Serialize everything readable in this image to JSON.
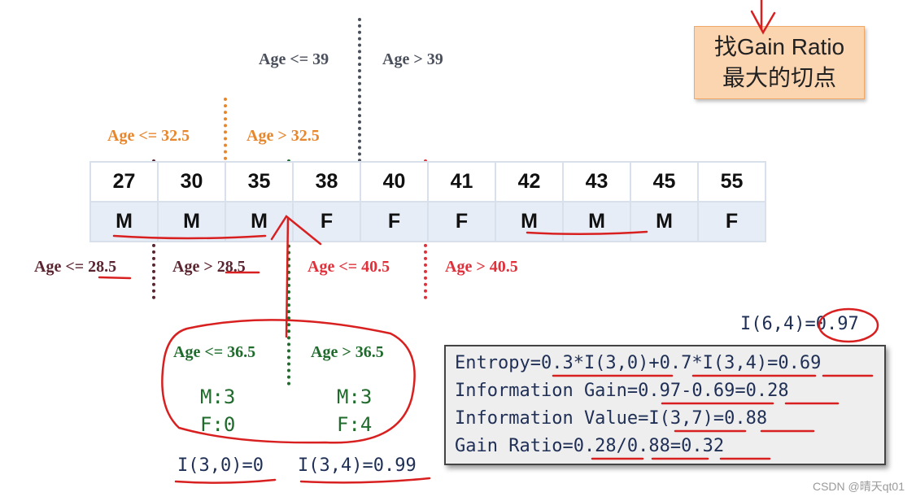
{
  "tip_box": {
    "line1": "找Gain Ratio",
    "line2": "最大的切点"
  },
  "split_labels": {
    "age_le_39": "Age <= 39",
    "age_gt_39": "Age > 39",
    "age_le_32_5": "Age <= 32.5",
    "age_gt_32_5": "Age > 32.5",
    "age_le_28_5": "Age <= 28.5",
    "age_gt_28_5": "Age > 28.5",
    "age_le_40_5": "Age <= 40.5",
    "age_gt_40_5": "Age > 40.5",
    "age_le_36_5": "Age <= 36.5",
    "age_gt_36_5": "Age > 36.5"
  },
  "data_table": {
    "ages": [
      "27",
      "30",
      "35",
      "38",
      "40",
      "41",
      "42",
      "43",
      "45",
      "55"
    ],
    "genders": [
      "M",
      "M",
      "M",
      "F",
      "F",
      "F",
      "M",
      "M",
      "M",
      "F"
    ]
  },
  "subset_counts": {
    "left_m": "M:3",
    "left_f": "F:0",
    "right_m": "M:3",
    "right_f": "F:4"
  },
  "subset_entropy": {
    "left": "I(3,0)=0",
    "right": "I(3,4)=0.99"
  },
  "total_entropy": "I(6,4)=0.97",
  "calculation": {
    "entropy": "Entropy=0.3*I(3,0)+0.7*I(3,4)=0.69",
    "information_gain": "Information Gain=0.97-0.69=0.28",
    "information_value": "Information Value=I(3,7)=0.88",
    "gain_ratio": "Gain Ratio=0.28/0.88=0.32"
  },
  "watermark": "CSDN @晴天qt01",
  "colors": {
    "split_39": "#4a4f5c",
    "split_32_5": "#e8862c",
    "split_28_5": "#5a2430",
    "split_40_5": "#e0303a",
    "split_36_5": "#1f6b2c",
    "annotation_red": "#d92020"
  }
}
